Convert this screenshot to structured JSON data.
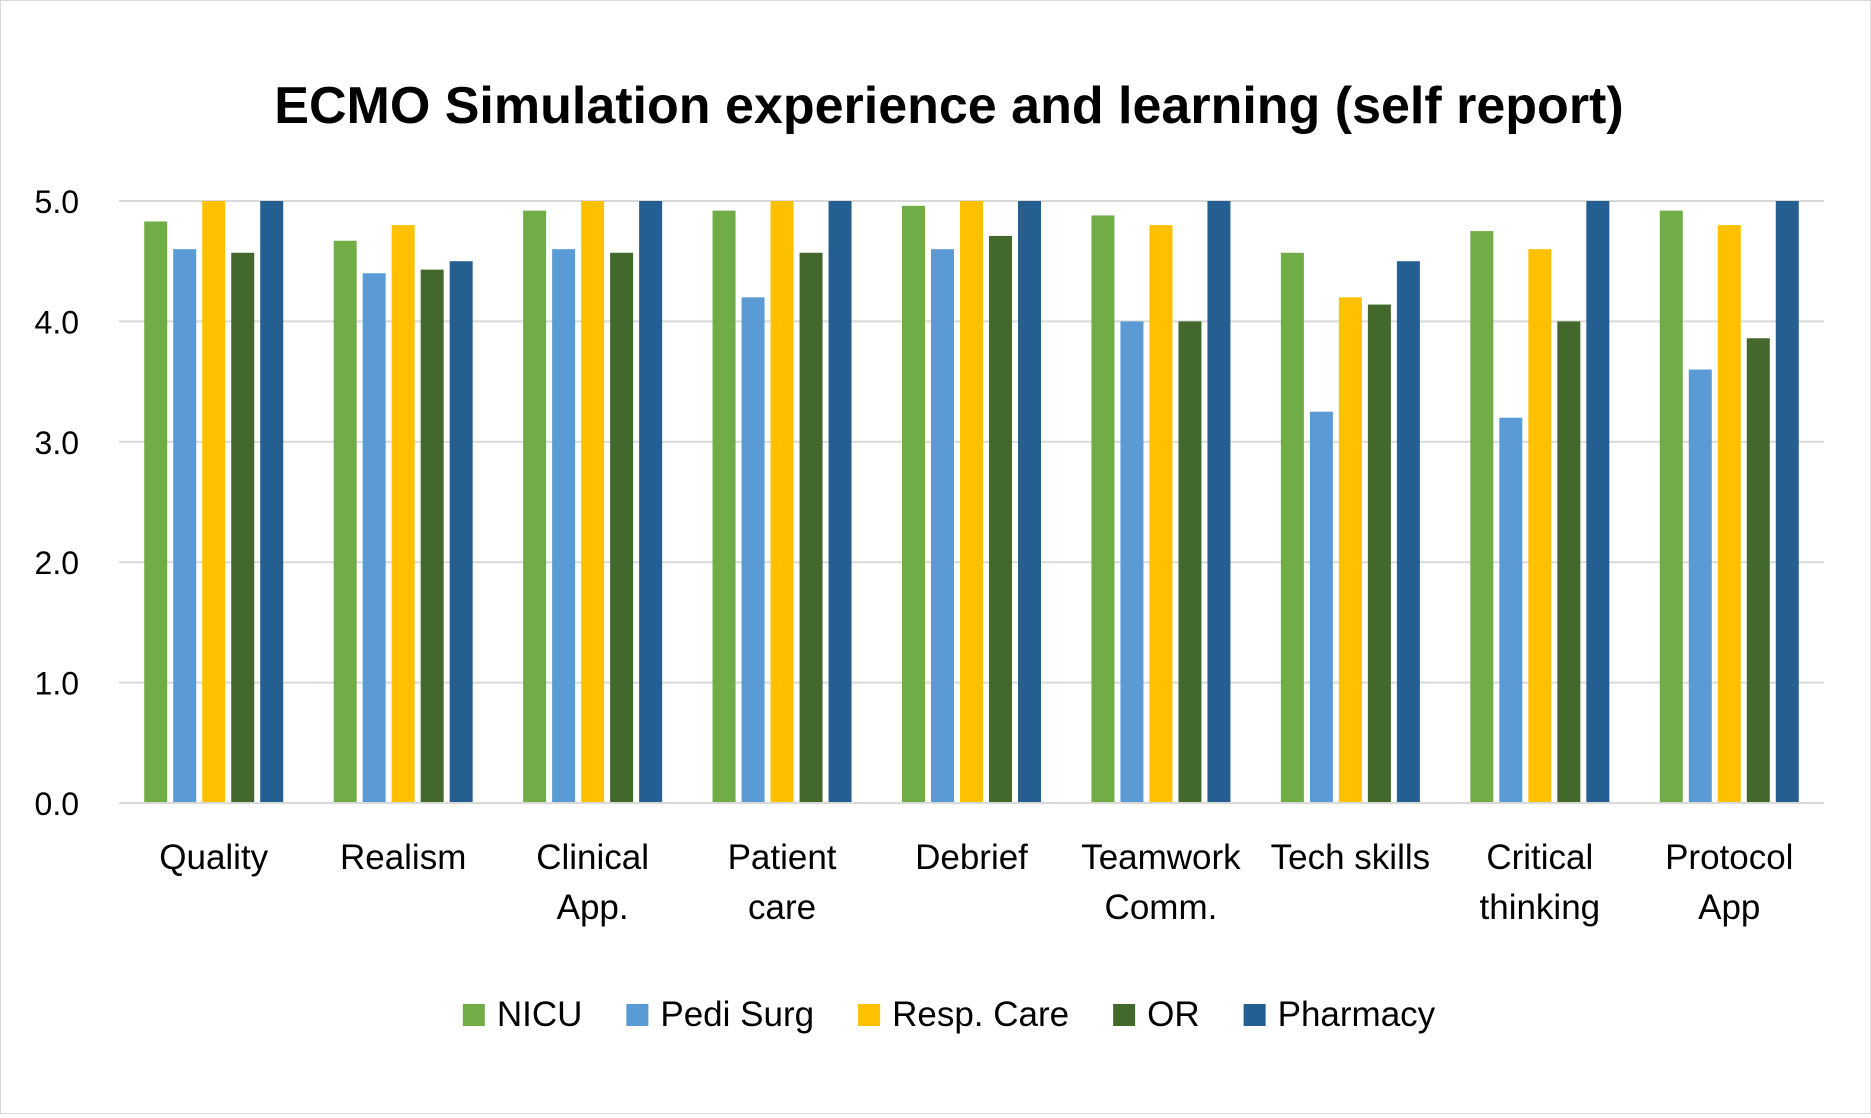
{
  "chart_data": {
    "type": "bar",
    "title": "ECMO Simulation experience and learning (self report)",
    "xlabel": "",
    "ylabel": "",
    "ylim": [
      0,
      5
    ],
    "yticks": [
      "0.0",
      "1.0",
      "2.0",
      "3.0",
      "4.0",
      "5.0"
    ],
    "grid": true,
    "legend_position": "bottom",
    "categories": [
      [
        "Quality"
      ],
      [
        "Realism"
      ],
      [
        "Clinical",
        "App."
      ],
      [
        "Patient",
        "care"
      ],
      [
        "Debrief"
      ],
      [
        "Teamwork",
        "Comm."
      ],
      [
        "Tech skills"
      ],
      [
        "Critical",
        "thinking"
      ],
      [
        "Protocol",
        "App"
      ]
    ],
    "series": [
      {
        "name": "NICU",
        "color": "#70ad47",
        "values": [
          4.83,
          4.67,
          4.92,
          4.92,
          4.96,
          4.88,
          4.57,
          4.75,
          4.92
        ]
      },
      {
        "name": "Pedi Surg",
        "color": "#5b9bd5",
        "values": [
          4.6,
          4.4,
          4.6,
          4.2,
          4.6,
          4.0,
          3.25,
          3.2,
          3.6
        ]
      },
      {
        "name": "Resp. Care",
        "color": "#ffc000",
        "values": [
          5.0,
          4.8,
          5.0,
          5.0,
          5.0,
          4.8,
          4.2,
          4.6,
          4.8
        ]
      },
      {
        "name": "OR",
        "color": "#43682b",
        "values": [
          4.57,
          4.43,
          4.57,
          4.57,
          4.71,
          4.0,
          4.14,
          4.0,
          3.86
        ]
      },
      {
        "name": "Pharmacy",
        "color": "#255e91",
        "values": [
          5.0,
          4.5,
          5.0,
          5.0,
          5.0,
          5.0,
          4.5,
          5.0,
          5.0
        ]
      }
    ],
    "colors": {
      "gridline": "#d9d9d9",
      "axis": "#d9d9d9",
      "border": "#d9d9d9"
    }
  }
}
